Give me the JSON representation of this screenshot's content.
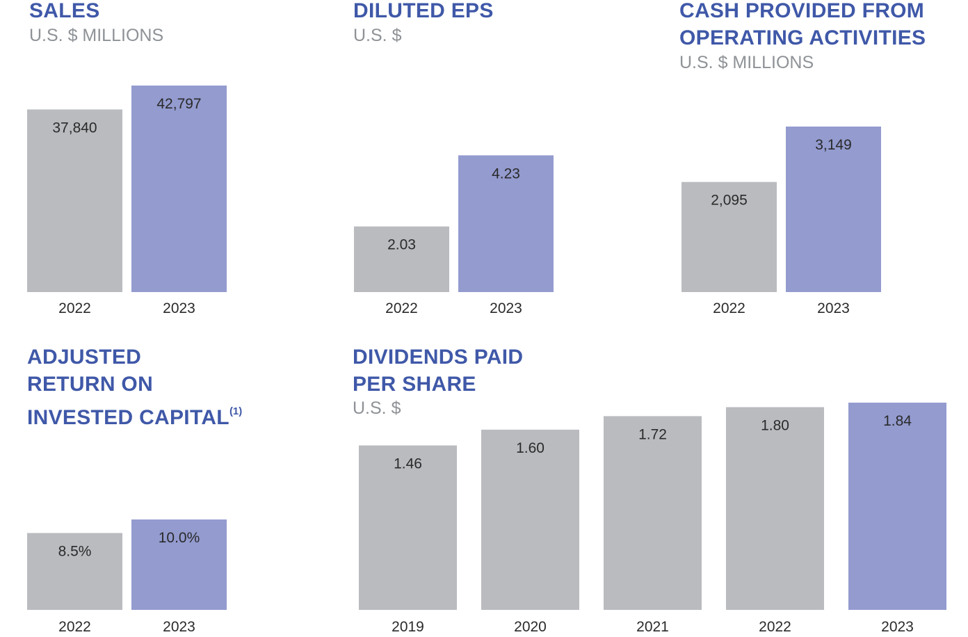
{
  "chart_data": [
    {
      "type": "bar",
      "title": "SALES",
      "subtitle": "U.S. $ MILLIONS",
      "categories": [
        "2022",
        "2023"
      ],
      "values": [
        37840,
        42797
      ],
      "value_labels": [
        "37,840",
        "42,797"
      ],
      "ylim": [
        0,
        42797
      ],
      "colors": [
        "#b9bbbf",
        "#939bcf"
      ],
      "grid": false
    },
    {
      "type": "bar",
      "title": "DILUTED EPS",
      "subtitle": "U.S. $",
      "categories": [
        "2022",
        "2023"
      ],
      "values": [
        2.03,
        4.23
      ],
      "value_labels": [
        "2.03",
        "4.23"
      ],
      "ylim": [
        0,
        5.12
      ],
      "colors": [
        "#b9bbbf",
        "#939bcf"
      ],
      "grid": false
    },
    {
      "type": "bar",
      "title": "CASH PROVIDED FROM OPERATING ACTIVITIES",
      "title_lines": [
        "CASH PROVIDED FROM",
        "OPERATING ACTIVITIES"
      ],
      "subtitle": "U.S. $ MILLIONS",
      "categories": [
        "2022",
        "2023"
      ],
      "values": [
        2095,
        3149
      ],
      "value_labels": [
        "2,095",
        "3,149"
      ],
      "ylim": [
        0,
        3149
      ],
      "colors": [
        "#b9bbbf",
        "#939bcf"
      ],
      "grid": false
    },
    {
      "type": "bar",
      "title": "ADJUSTED RETURN ON INVESTED CAPITAL",
      "title_lines": [
        "ADJUSTED",
        "RETURN ON",
        "INVESTED CAPITAL"
      ],
      "title_footnote": "(1)",
      "subtitle": "",
      "categories": [
        "2022",
        "2023"
      ],
      "values": [
        8.5,
        10.0
      ],
      "value_labels": [
        "8.5%",
        "10.0%"
      ],
      "ylim": [
        0,
        10.0
      ],
      "colors": [
        "#b9bbbf",
        "#939bcf"
      ],
      "grid": false
    },
    {
      "type": "bar",
      "title": "DIVIDENDS PAID PER SHARE",
      "title_lines": [
        "DIVIDENDS PAID",
        "PER SHARE"
      ],
      "subtitle": "U.S. $",
      "categories": [
        "2019",
        "2020",
        "2021",
        "2022",
        "2023"
      ],
      "values": [
        1.46,
        1.6,
        1.72,
        1.8,
        1.84
      ],
      "value_labels": [
        "1.46",
        "1.60",
        "1.72",
        "1.80",
        "1.84"
      ],
      "ylim": [
        0,
        1.84
      ],
      "colors": [
        "#b9bbbf",
        "#b9bbbf",
        "#b9bbbf",
        "#b9bbbf",
        "#939bcf"
      ],
      "grid": false
    }
  ]
}
